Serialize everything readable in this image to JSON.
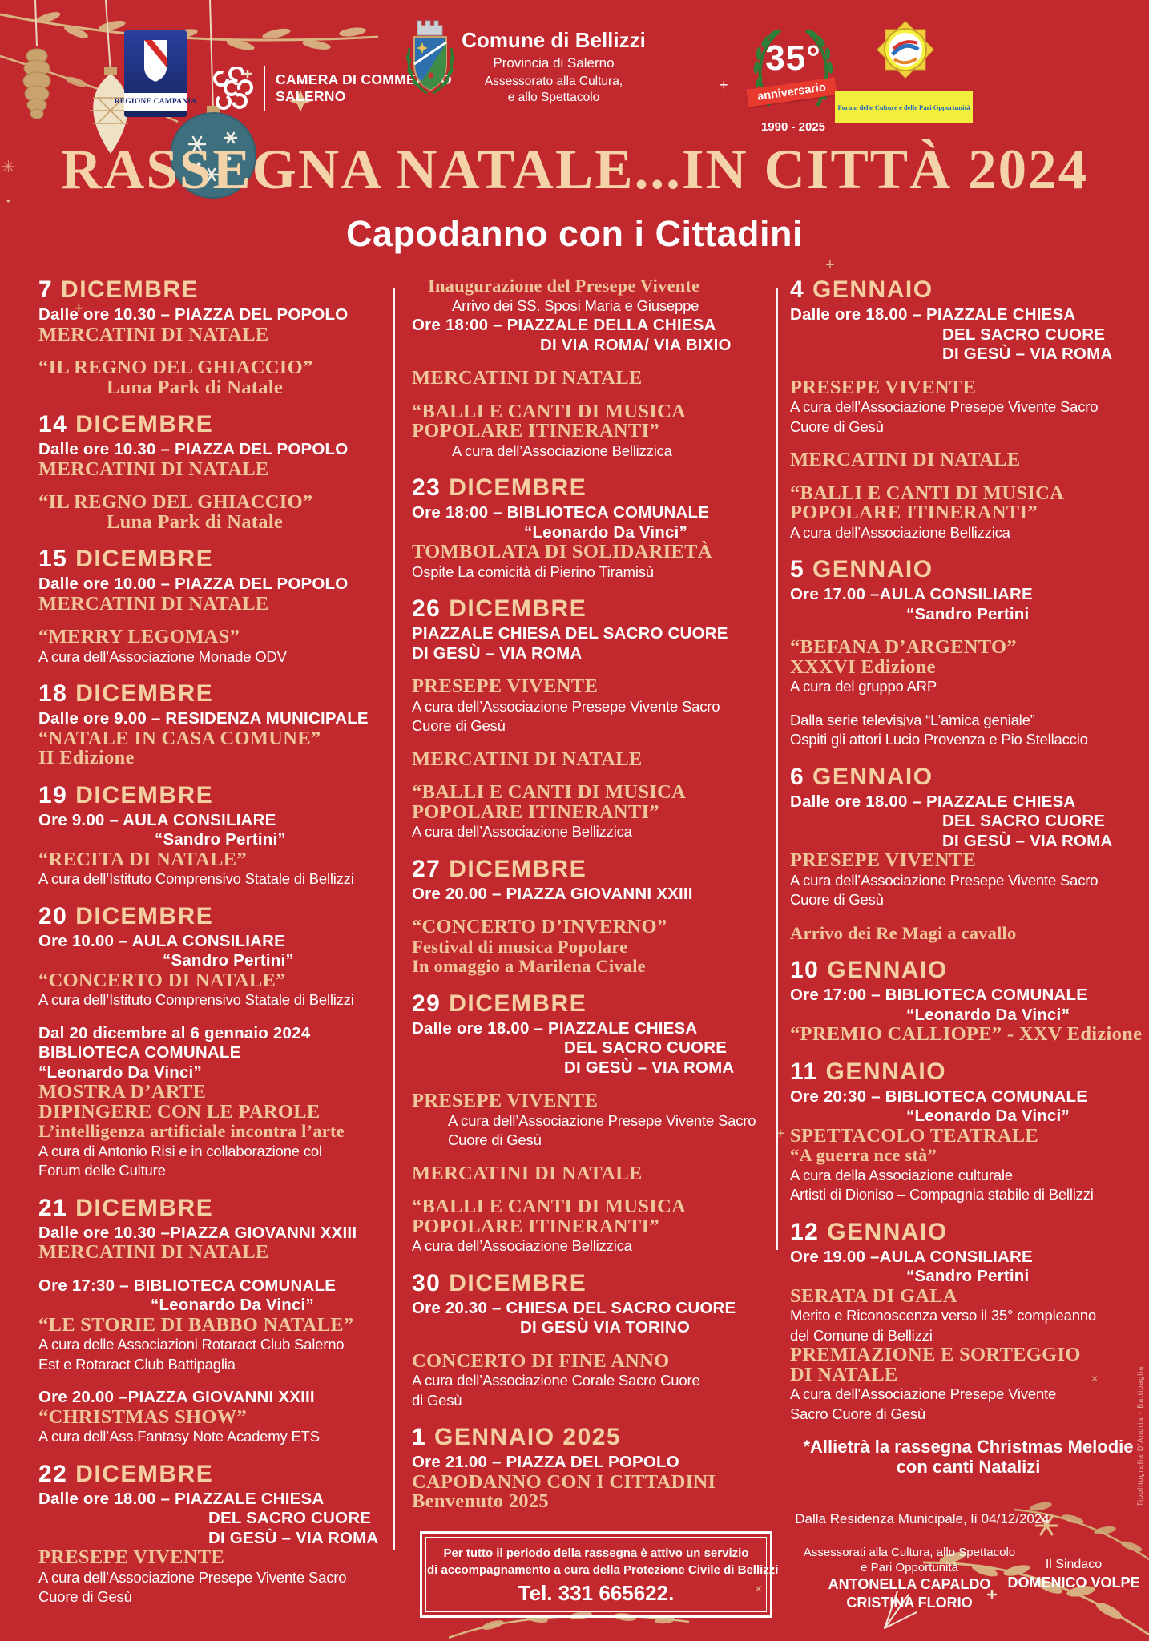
{
  "colors": {
    "bg": "#c2292f",
    "cream": "#f3cfa1",
    "serif_cream": "#f0c79a",
    "white": "#ffffff",
    "forum_yellow": "#f2ee3c",
    "ribbon_red": "#e8392f",
    "laurel_green": "#2d7a35",
    "regione_blue": "#20338f"
  },
  "icons": {
    "sparkle": "✳",
    "plus": "+",
    "cross": "×",
    "dot": "•",
    "star4": "✦"
  },
  "header": {
    "regione": {
      "label": "REGIONE CAMPANIA"
    },
    "camera": {
      "line1": "CAMERA DI COMMERCIO",
      "line2": "SALERNO"
    },
    "comune": {
      "name": "Comune di Bellizzi",
      "prov": "Provincia di Salerno",
      "dept1": "Assessorato alla Cultura,",
      "dept2": "e allo Spettacolo"
    },
    "anniv": {
      "num": "35°",
      "word": "anniversario",
      "years": "1990 - 2025"
    },
    "forum": {
      "text": "Forum delle Culture e delle Pari Opportunità"
    }
  },
  "title": "RASSEGNA NATALE...IN CITTÀ 2024",
  "subtitle": "Capodanno con i Cittadini",
  "columns": [
    [
      {
        "lines": [
          {
            "t": "date",
            "n": "7",
            "s": "DICEMBRE"
          },
          {
            "t": "place",
            "s": "Dalle ore 10.30 – PIAZZA DEL POPOLO"
          },
          {
            "t": "title",
            "s": "MERCATINI DI NATALE"
          }
        ]
      },
      {
        "lines": [
          {
            "t": "title",
            "s": "“IL REGNO DEL GHIACCIO”"
          },
          {
            "t": "title",
            "s": "Luna Park di Natale",
            "i": 85
          }
        ]
      },
      {
        "lines": [
          {
            "t": "date",
            "n": "14",
            "s": "DICEMBRE"
          },
          {
            "t": "place",
            "s": "Dalle ore 10.30 – PIAZZA DEL POPOLO"
          },
          {
            "t": "title",
            "s": "MERCATINI DI NATALE"
          }
        ]
      },
      {
        "lines": [
          {
            "t": "title",
            "s": "“IL REGNO DEL GHIACCIO”"
          },
          {
            "t": "title",
            "s": "Luna Park di Natale",
            "i": 85
          }
        ]
      },
      {
        "lines": [
          {
            "t": "date",
            "n": "15",
            "s": "DICEMBRE"
          },
          {
            "t": "place",
            "s": "Dalle ore 10.00 – PIAZZA DEL POPOLO"
          },
          {
            "t": "title",
            "s": "MERCATINI DI NATALE"
          }
        ]
      },
      {
        "lines": [
          {
            "t": "title",
            "s": "“MERRY LEGOMAS”"
          },
          {
            "t": "body",
            "s": "A cura dell’Associazione Monade ODV"
          }
        ]
      },
      {
        "lines": [
          {
            "t": "date",
            "n": "18",
            "s": "DICEMBRE"
          },
          {
            "t": "place",
            "s": "Dalle ore 9.00 – RESIDENZA MUNICIPALE"
          },
          {
            "t": "title",
            "s": "“NATALE IN CASA COMUNE”"
          },
          {
            "t": "title",
            "s": "II Edizione"
          }
        ]
      },
      {
        "lines": [
          {
            "t": "date",
            "n": "19",
            "s": "DICEMBRE"
          },
          {
            "t": "place",
            "s": "Ore 9.00 –  AULA CONSILIARE"
          },
          {
            "t": "place",
            "s": "“Sandro Pertini”",
            "i": 145
          },
          {
            "t": "title",
            "s": "“RECITA DI NATALE”"
          },
          {
            "t": "body",
            "s": "A cura dell’Istituto Comprensivo Statale di Bellizzi"
          }
        ]
      },
      {
        "lines": [
          {
            "t": "date",
            "n": "20",
            "s": "DICEMBRE"
          },
          {
            "t": "place",
            "s": "Ore 10.00 – AULA CONSILIARE"
          },
          {
            "t": "place",
            "s": "“Sandro Pertini”",
            "i": 155
          },
          {
            "t": "title",
            "s": "“CONCERTO DI NATALE”"
          },
          {
            "t": "body",
            "s": "A cura dell’Istituto Comprensivo Statale di Bellizzi"
          }
        ]
      },
      {
        "lines": [
          {
            "t": "place",
            "s": "Dal 20 dicembre al 6 gennaio 2024"
          },
          {
            "t": "place",
            "s": "BIBLIOTECA COMUNALE"
          },
          {
            "t": "place",
            "s": "“Leonardo Da Vinci”"
          },
          {
            "t": "title",
            "s": "MOSTRA D’ARTE"
          },
          {
            "t": "title",
            "s": "DIPINGERE CON LE PAROLE"
          },
          {
            "t": "title2",
            "s": "L’intelligenza artificiale incontra l’arte"
          },
          {
            "t": "body",
            "s": "A cura di Antonio Risi e in collaborazione col"
          },
          {
            "t": "body",
            "s": "Forum delle Culture"
          }
        ]
      },
      {
        "lines": [
          {
            "t": "date",
            "n": "21",
            "s": "DICEMBRE"
          },
          {
            "t": "place",
            "s": "Dalle ore 10.30 –PIAZZA GIOVANNI XXIII"
          },
          {
            "t": "title",
            "s": "MERCATINI DI NATALE"
          }
        ]
      },
      {
        "lines": [
          {
            "t": "place",
            "s": "Ore 17:30 – BIBLIOTECA COMUNALE"
          },
          {
            "t": "place",
            "s": "“Leonardo Da Vinci”",
            "i": 140
          },
          {
            "t": "title",
            "s": "“LE STORIE DI BABBO NATALE”"
          },
          {
            "t": "body",
            "s": "A cura delle Associazioni Rotaract Club Salerno"
          },
          {
            "t": "body",
            "s": "Est e Rotaract Club Battipaglia"
          }
        ]
      },
      {
        "lines": [
          {
            "t": "place",
            "s": "Ore 20.00 –PIAZZA GIOVANNI XXIII"
          },
          {
            "t": "title",
            "s": "“CHRISTMAS SHOW”"
          },
          {
            "t": "body",
            "s": "A cura dell’Ass.Fantasy Note Academy ETS"
          }
        ]
      },
      {
        "lines": [
          {
            "t": "date",
            "n": "22",
            "s": "DICEMBRE"
          },
          {
            "t": "place",
            "s": "Dalle ore 18.00 – PIAZZALE CHIESA"
          },
          {
            "t": "place",
            "s": "DEL SACRO CUORE",
            "i": 212
          },
          {
            "t": "place",
            "s": "DI  GESÙ – VIA ROMA",
            "i": 212
          },
          {
            "t": "title",
            "s": "PRESEPE VIVENTE"
          },
          {
            "t": "body",
            "s": "A cura dell’Associazione Presepe Vivente Sacro"
          },
          {
            "t": "body",
            "s": "Cuore di Gesù"
          }
        ]
      }
    ],
    [
      {
        "lines": [
          {
            "t": "title2",
            "s": "Inaugurazione del Presepe Vivente",
            "i": 20
          },
          {
            "t": "body",
            "s": "Arrivo dei SS. Sposi Maria e Giuseppe",
            "i": 50
          },
          {
            "t": "place",
            "s": "Ore 18:00 – PIAZZALE DELLA CHIESA"
          },
          {
            "t": "place",
            "s": "DI VIA ROMA/ VIA BIXIO",
            "i": 160
          }
        ]
      },
      {
        "lines": [
          {
            "t": "title",
            "s": "MERCATINI DI NATALE"
          }
        ]
      },
      {
        "lines": [
          {
            "t": "title",
            "s": "“BALLI E CANTI DI MUSICA"
          },
          {
            "t": "title",
            "s": "POPOLARE ITINERANTI”"
          },
          {
            "t": "body",
            "s": "A cura dell’Associazione Bellizzica",
            "i": 50
          }
        ]
      },
      {
        "lines": [
          {
            "t": "date",
            "n": "23",
            "s": "DICEMBRE"
          },
          {
            "t": "place",
            "s": "Ore 18:00 – BIBLIOTECA COMUNALE"
          },
          {
            "t": "place",
            "s": "“Leonardo Da Vinci”",
            "i": 140
          },
          {
            "t": "title",
            "s": "TOMBOLATA DI SOLIDARIETÀ"
          },
          {
            "t": "body",
            "s": "Ospite La comicità di Pierino Tiramisù"
          }
        ]
      },
      {
        "lines": [
          {
            "t": "date",
            "n": "26",
            "s": "DICEMBRE"
          },
          {
            "t": "place",
            "s": "PIAZZALE CHIESA DEL SACRO CUORE"
          },
          {
            "t": "place",
            "s": "DI GESÙ  – VIA ROMA"
          }
        ]
      },
      {
        "lines": [
          {
            "t": "title",
            "s": "PRESEPE VIVENTE"
          },
          {
            "t": "body",
            "s": "A cura dell’Associazione Presepe Vivente Sacro"
          },
          {
            "t": "body",
            "s": "Cuore di Gesù"
          }
        ]
      },
      {
        "lines": [
          {
            "t": "title",
            "s": "MERCATINI DI NATALE"
          }
        ]
      },
      {
        "lines": [
          {
            "t": "title",
            "s": "“BALLI E CANTI DI MUSICA"
          },
          {
            "t": "title",
            "s": "POPOLARE ITINERANTI”"
          },
          {
            "t": "body",
            "s": "A cura dell’Associazione Bellizzica"
          }
        ]
      },
      {
        "lines": [
          {
            "t": "date",
            "n": "27",
            "s": "DICEMBRE"
          },
          {
            "t": "place",
            "s": "Ore 20.00 – PIAZZA GIOVANNI XXIII"
          }
        ]
      },
      {
        "lines": [
          {
            "t": "title",
            "s": "“CONCERTO D’INVERNO”"
          },
          {
            "t": "title2",
            "s": "Festival di musica Popolare"
          },
          {
            "t": "title2",
            "s": "In omaggio a Marilena Civale"
          }
        ]
      },
      {
        "lines": [
          {
            "t": "date",
            "n": "29",
            "s": "DICEMBRE"
          },
          {
            "t": "place",
            "s": "Dalle ore 18.00 –  PIAZZALE CHIESA"
          },
          {
            "t": "place",
            "s": "DEL SACRO CUORE",
            "i": 190
          },
          {
            "t": "place",
            "s": "DI GESÙ  – VIA ROMA",
            "i": 190
          }
        ]
      },
      {
        "lines": [
          {
            "t": "title",
            "s": "PRESEPE VIVENTE"
          },
          {
            "t": "body",
            "s": "A cura dell’Associazione Presepe Vivente Sacro",
            "i": 45
          },
          {
            "t": "body",
            "s": "Cuore di Gesù",
            "i": 45
          }
        ]
      },
      {
        "lines": [
          {
            "t": "title",
            "s": "MERCATINI DI NATALE"
          }
        ]
      },
      {
        "lines": [
          {
            "t": "title",
            "s": "“BALLI E CANTI DI MUSICA"
          },
          {
            "t": "title",
            "s": "POPOLARE ITINERANTI”"
          },
          {
            "t": "body",
            "s": "A cura dell’Associazione Bellizzica"
          }
        ]
      },
      {
        "lines": [
          {
            "t": "date",
            "n": "30",
            "s": "DICEMBRE"
          },
          {
            "t": "place",
            "s": "Ore 20.30 –  CHIESA DEL SACRO CUORE"
          },
          {
            "t": "place",
            "s": "DI GESÙ VIA TORINO",
            "i": 135
          }
        ]
      },
      {
        "lines": [
          {
            "t": "title",
            "s": "CONCERTO DI FINE ANNO"
          },
          {
            "t": "body",
            "s": "A cura dell’Associazione Corale Sacro Cuore"
          },
          {
            "t": "body",
            "s": "di Gesù"
          }
        ]
      },
      {
        "lines": [
          {
            "t": "date",
            "n": "1",
            "s": "GENNAIO 2025"
          },
          {
            "t": "place",
            "s": "Ore 21.00 – PIAZZA DEL POPOLO"
          },
          {
            "t": "title",
            "s": "CAPODANNO CON I CITTADINI"
          },
          {
            "t": "title",
            "s": "Benvenuto 2025"
          }
        ]
      },
      {
        "box": {
          "l1": "Per tutto il periodo della rassegna è attivo un servizio",
          "l2": "di accompagnamento a cura della Protezione Civile di Bellizzi",
          "tel": "Tel. 331 665622."
        }
      }
    ],
    [
      {
        "lines": [
          {
            "t": "date",
            "n": "4",
            "s": "GENNAIO"
          },
          {
            "t": "place",
            "s": "Dalle ore 18.00 – PIAZZALE CHIESA"
          },
          {
            "t": "place",
            "s": "DEL SACRO CUORE",
            "i": 190
          },
          {
            "t": "place",
            "s": "DI GESÙ  – VIA ROMA",
            "i": 190
          }
        ]
      },
      {
        "lines": [
          {
            "t": "title",
            "s": "PRESEPE VIVENTE"
          },
          {
            "t": "body",
            "s": "A cura dell’Associazione Presepe Vivente Sacro"
          },
          {
            "t": "body",
            "s": "Cuore di Gesù"
          }
        ]
      },
      {
        "lines": [
          {
            "t": "title",
            "s": "MERCATINI DI NATALE"
          }
        ]
      },
      {
        "lines": [
          {
            "t": "title",
            "s": "“BALLI E CANTI DI MUSICA"
          },
          {
            "t": "title",
            "s": "POPOLARE ITINERANTI”"
          },
          {
            "t": "body",
            "s": "A cura dell’Associazione Bellizzica"
          }
        ]
      },
      {
        "lines": [
          {
            "t": "date",
            "n": "5",
            "s": "GENNAIO"
          },
          {
            "t": "place",
            "s": "Ore 17.00 –AULA CONSILIARE"
          },
          {
            "t": "place",
            "s": "“Sandro Pertini",
            "i": 145
          }
        ]
      },
      {
        "lines": [
          {
            "t": "title",
            "s": "“BEFANA D’ARGENTO”"
          },
          {
            "t": "title",
            "s": "XXXVI Edizione"
          },
          {
            "t": "body",
            "s": "A cura del gruppo ARP"
          }
        ]
      },
      {
        "lines": [
          {
            "t": "body",
            "s": "Dalla serie televisiva “L’amica geniale”"
          },
          {
            "t": "body",
            "s": "Ospiti gli attori Lucio Provenza e Pio Stellaccio"
          }
        ]
      },
      {
        "lines": [
          {
            "t": "date",
            "n": "6",
            "s": "GENNAIO"
          },
          {
            "t": "place",
            "s": "Dalle ore 18.00 – PIAZZALE CHIESA"
          },
          {
            "t": "place",
            "s": "DEL SACRO CUORE",
            "i": 190
          },
          {
            "t": "place",
            "s": "DI GESÙ  – VIA ROMA",
            "i": 190
          },
          {
            "t": "title",
            "s": "PRESEPE VIVENTE"
          },
          {
            "t": "body",
            "s": "A cura dell’Associazione Presepe Vivente Sacro"
          },
          {
            "t": "body",
            "s": "Cuore di Gesù"
          }
        ]
      },
      {
        "lines": [
          {
            "t": "title2",
            "s": "Arrivo dei Re Magi a cavallo"
          }
        ]
      },
      {
        "lines": [
          {
            "t": "date",
            "n": "10",
            "s": "GENNAIO"
          },
          {
            "t": "place",
            "s": "Ore 17:00 – BIBLIOTECA COMUNALE"
          },
          {
            "t": "place",
            "s": "“Leonardo Da Vinci”",
            "i": 145
          },
          {
            "t": "title",
            "s": "“PREMIO CALLIOPE” - XXV Edizione"
          }
        ]
      },
      {
        "lines": [
          {
            "t": "date",
            "n": "11",
            "s": "GENNAIO"
          },
          {
            "t": "place",
            "s": "Ore 20:30 – BIBLIOTECA COMUNALE"
          },
          {
            "t": "place",
            "s": "“Leonardo Da Vinci”",
            "i": 145
          },
          {
            "t": "title",
            "s": "SPETTACOLO TEATRALE"
          },
          {
            "t": "title2",
            "s": "“A guerra nce stà”"
          },
          {
            "t": "body",
            "s": "A cura della Associazione culturale"
          },
          {
            "t": "body",
            "s": "Artisti di Dioniso – Compagnia stabile di Bellizzi"
          }
        ]
      },
      {
        "lines": [
          {
            "t": "date",
            "n": "12",
            "s": "GENNAIO"
          },
          {
            "t": "place",
            "s": "Ore 19.00 –AULA CONSILIARE"
          },
          {
            "t": "place",
            "s": "“Sandro Pertini",
            "i": 145
          },
          {
            "t": "title",
            "s": "SERATA DI GALA"
          },
          {
            "t": "body",
            "s": "Merito e Riconoscenza verso il 35° compleanno"
          },
          {
            "t": "body",
            "s": "del Comune di Bellizzi"
          },
          {
            "t": "title",
            "s": "PREMIAZIONE E SORTEGGIO"
          },
          {
            "t": "title",
            "s": "DI NATALE"
          },
          {
            "t": "body",
            "s": "A cura dell’Associazione Presepe Vivente"
          },
          {
            "t": "body",
            "s": "Sacro Cuore di Gesù"
          }
        ]
      },
      {
        "lines": [
          {
            "t": "note",
            "s": "*Allietrà la rassegna Christmas Melodie"
          },
          {
            "t": "note",
            "s": "con canti Natalizi"
          }
        ]
      }
    ]
  ],
  "footer": {
    "dated": "Dalla Residenza Municipale, lì 04/12/2024",
    "left_role1": "Assessorati alla Cultura, allo Spettacolo",
    "left_role2": "e Pari Opportunità",
    "left_name1": "ANTONELLA CAPALDO",
    "left_name2": "CRISTINA FLORIO",
    "right_role": "Il Sindaco",
    "right_name": "DOMENICO VOLPE"
  },
  "credit": "Tipolitografia D’Andria - Battipaglia"
}
